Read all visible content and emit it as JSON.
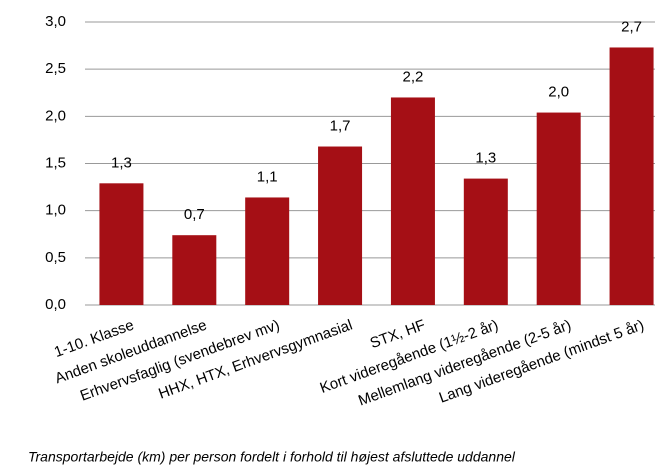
{
  "chart_data": {
    "type": "bar",
    "caption": "Transportarbejde (km) per person fordelt i forhold til højest afsluttede uddannel",
    "categories": [
      "1-10. Klasse",
      "Anden skoleuddannelse",
      "Erhvervsfaglig (svendebrev mv)",
      "HHX, HTX, Erhvervsgymnasial",
      "STX, HF",
      "Kort videregående (1½-2 år)",
      "Mellemlang videregående (2-5 år)",
      "Lang videregående (mindst 5 år)"
    ],
    "values": [
      1.29,
      0.74,
      1.14,
      1.68,
      2.2,
      1.34,
      2.04,
      2.73
    ],
    "value_labels": [
      "1,3",
      "0,7",
      "1,1",
      "1,7",
      "2,2",
      "1,3",
      "2,0",
      "2,7"
    ],
    "color": "#a50f15",
    "ylim": [
      0,
      3
    ],
    "yticks": [
      {
        "value": 0,
        "label": "0,0"
      },
      {
        "value": 0.5,
        "label": "0,5"
      },
      {
        "value": 1,
        "label": "1,0"
      },
      {
        "value": 1.5,
        "label": "1,5"
      },
      {
        "value": 2,
        "label": "2,0"
      },
      {
        "value": 2.5,
        "label": "2,5"
      },
      {
        "value": 3,
        "label": "3,0"
      }
    ],
    "grid": true
  }
}
